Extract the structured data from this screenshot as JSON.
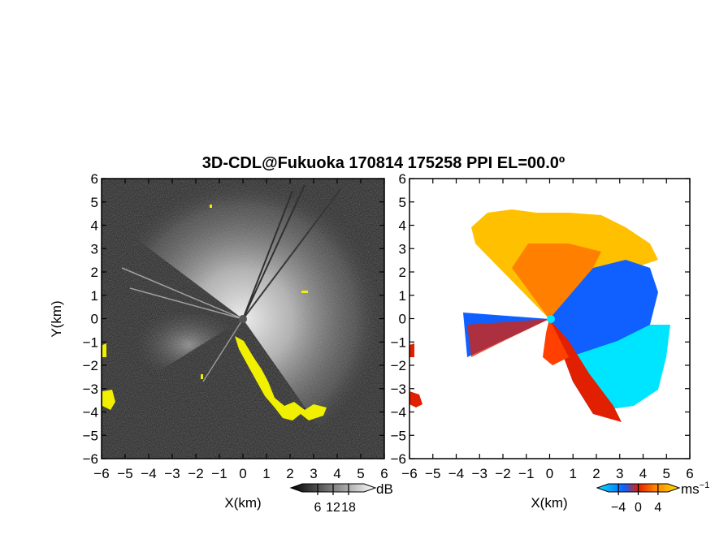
{
  "title": "3D-CDL@Fukuoka 170814 175258 PPI EL=00.0º",
  "colors": {
    "background": "#ffffff",
    "reflectivity_high_return": "#f0f000",
    "velocity_low": "#00e5ff",
    "velocity_neg": "#1060ff",
    "velocity_zero": "#e02000",
    "velocity_pos": "#ffc000"
  },
  "chart_data": [
    {
      "type": "heatmap",
      "panel": "reflectivity",
      "xlabel": "X(km)",
      "ylabel": "Y(km)",
      "xlim": [
        -6,
        6
      ],
      "ylim": [
        -6,
        6
      ],
      "xticks": [
        "−6",
        "−5",
        "−4",
        "−3",
        "−2",
        "−1",
        "0",
        "1",
        "2",
        "3",
        "4",
        "5",
        "6"
      ],
      "yticks": [
        "−6",
        "−5",
        "−4",
        "−3",
        "−2",
        "−1",
        "0",
        "1",
        "2",
        "3",
        "4",
        "5",
        "6"
      ],
      "colorbar": {
        "unit": "dB",
        "ticks": [
          "6",
          "12",
          "18"
        ],
        "range": [
          0,
          24
        ]
      }
    },
    {
      "type": "heatmap",
      "panel": "doppler_velocity",
      "xlabel": "X(km)",
      "ylabel": "",
      "xlim": [
        -6,
        6
      ],
      "ylim": [
        -6,
        6
      ],
      "xticks": [
        "−6",
        "−5",
        "−4",
        "−3",
        "−2",
        "−1",
        "0",
        "1",
        "2",
        "3",
        "4",
        "5",
        "6"
      ],
      "yticks": [
        "−6",
        "−5",
        "−4",
        "−3",
        "−2",
        "−1",
        "0",
        "1",
        "2",
        "3",
        "4",
        "5",
        "6"
      ],
      "colorbar": {
        "unit": "ms",
        "unit_exponent": "−1",
        "ticks": [
          "−4",
          "0",
          "4"
        ],
        "range": [
          -6,
          6
        ]
      }
    }
  ]
}
